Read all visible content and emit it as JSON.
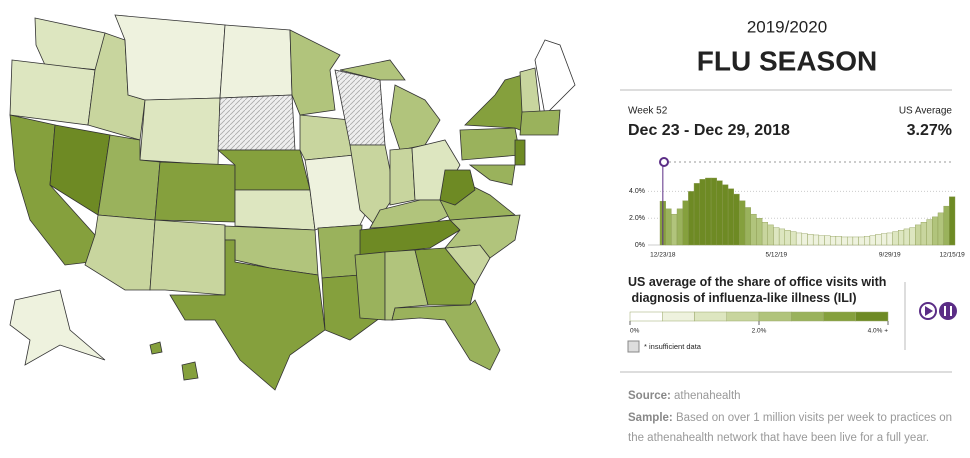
{
  "header": {
    "season": "2019/2020",
    "title": "FLU SEASON"
  },
  "week": {
    "label": "Week 52",
    "dates": "Dec 23 - Dec 29, 2018",
    "average_label": "US Average",
    "average": "3.27%"
  },
  "chart_data": {
    "type": "bar",
    "categories": [
      "12/23/18",
      null,
      null,
      null,
      null,
      null,
      null,
      null,
      null,
      null,
      null,
      null,
      null,
      null,
      null,
      null,
      null,
      null,
      null,
      null,
      "5/12/19",
      null,
      null,
      null,
      null,
      null,
      null,
      null,
      null,
      null,
      null,
      null,
      null,
      null,
      null,
      null,
      null,
      null,
      null,
      null,
      "9/29/19",
      null,
      null,
      null,
      null,
      null,
      null,
      null,
      null,
      null,
      null,
      "12/15/19"
    ],
    "values": [
      3.27,
      2.7,
      2.3,
      2.7,
      3.3,
      4.0,
      4.6,
      4.9,
      5.0,
      5.0,
      4.8,
      4.5,
      4.2,
      3.8,
      3.3,
      2.8,
      2.3,
      2.0,
      1.7,
      1.5,
      1.3,
      1.2,
      1.1,
      1.0,
      0.9,
      0.85,
      0.8,
      0.75,
      0.7,
      0.7,
      0.65,
      0.65,
      0.6,
      0.6,
      0.6,
      0.6,
      0.65,
      0.7,
      0.8,
      0.85,
      0.9,
      1.0,
      1.1,
      1.2,
      1.3,
      1.5,
      1.7,
      1.9,
      2.1,
      2.4,
      2.9,
      3.6
    ],
    "ylim": [
      0,
      5
    ],
    "yticks": [
      {
        "value": 0,
        "label": "0%"
      },
      {
        "value": 2,
        "label": "2.0%"
      },
      {
        "value": 4,
        "label": "4.0%"
      }
    ]
  },
  "legend": {
    "title": "US average of the share of office visits with diagnosis of influenza-like illness (ILI)",
    "bins": [
      0,
      0.5,
      1,
      1.5,
      2,
      2.5,
      3,
      3.5,
      4
    ],
    "colors": [
      "#ffffff",
      "#eef2de",
      "#dde6c0",
      "#c8d59e",
      "#b1c47c",
      "#9ab25c",
      "#85a03d",
      "#6e8a24"
    ],
    "labels": [
      {
        "value": 0,
        "label": "0%"
      },
      {
        "value": 2,
        "label": "2.0%"
      },
      {
        "value": 4,
        "label": "4.0% +"
      }
    ],
    "insufficient": "* insufficient data"
  },
  "footer": {
    "source_label": "Source:",
    "source": "athenahealth",
    "sample_label": "Sample:",
    "sample": "Based on over 1 million visits per week to practices on the athenahealth network that have been live for a full year."
  }
}
